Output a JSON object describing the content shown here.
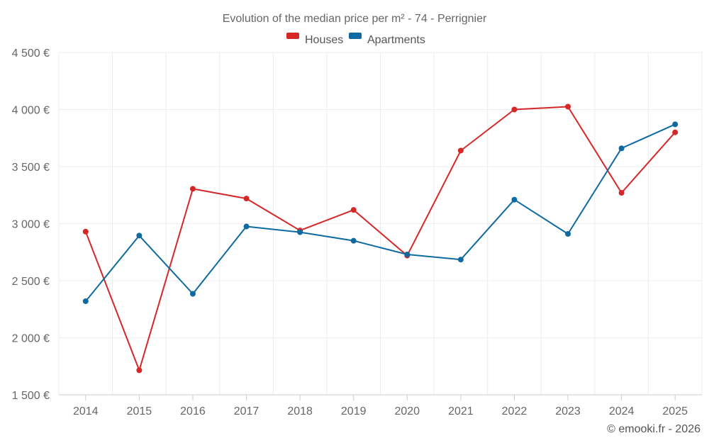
{
  "chart_data": {
    "type": "line",
    "title": "Evolution of the median price per m² - 74 - Perrignier",
    "categories": [
      "2014",
      "2015",
      "2016",
      "2017",
      "2018",
      "2019",
      "2020",
      "2021",
      "2022",
      "2023",
      "2024",
      "2025"
    ],
    "series": [
      {
        "name": "Houses",
        "color": "#d62728",
        "values": [
          2930,
          1715,
          3305,
          3220,
          2940,
          3120,
          2720,
          3640,
          4000,
          4025,
          3270,
          3800
        ]
      },
      {
        "name": "Apartments",
        "color": "#0e6aa0",
        "values": [
          2320,
          2895,
          2385,
          2975,
          2925,
          2850,
          2730,
          2685,
          3210,
          2910,
          3660,
          3870
        ]
      }
    ],
    "ylim": [
      1500,
      4500
    ],
    "yticks": [
      1500,
      2000,
      2500,
      3000,
      3500,
      4000,
      4500
    ],
    "ytick_labels": [
      "1 500 €",
      "2 000 €",
      "2 500 €",
      "3 000 €",
      "3 500 €",
      "4 000 €",
      "4 500 €"
    ],
    "xlabel": "",
    "ylabel": "",
    "legend_position": "top-center",
    "grid": true
  },
  "credit": "© emooki.fr - 2026"
}
